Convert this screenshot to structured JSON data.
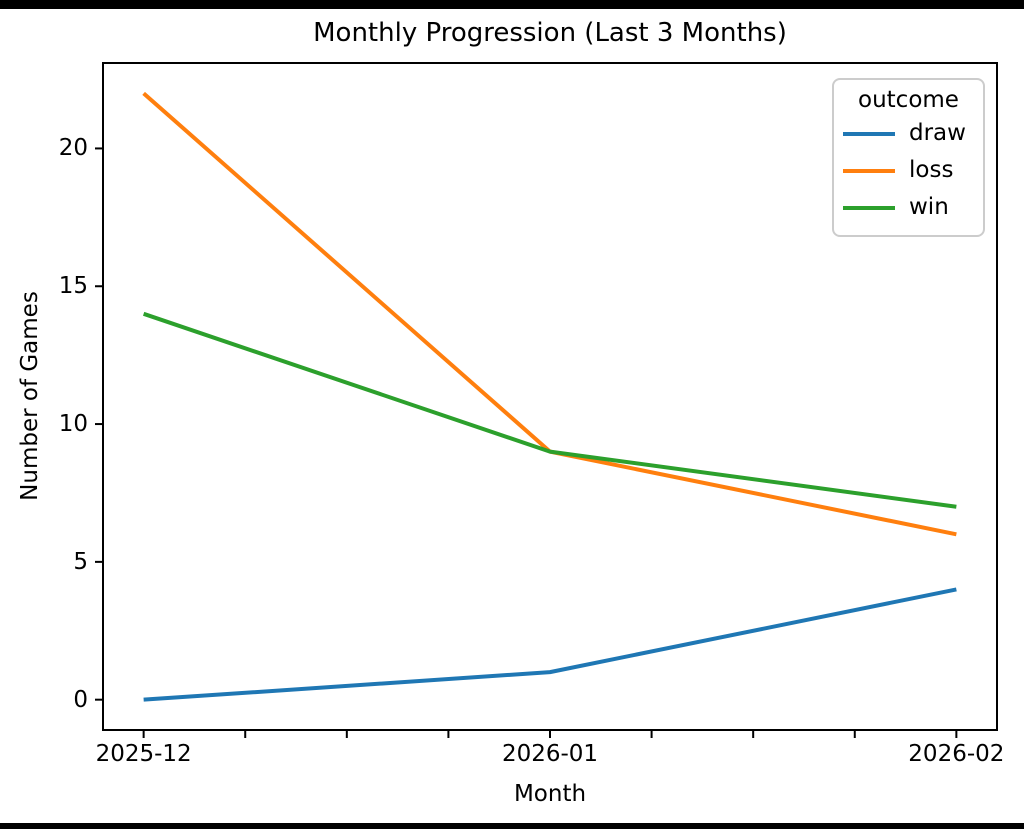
{
  "window": {
    "background_color": "#000000",
    "figure_background_color": "#ffffff"
  },
  "chart_data": {
    "type": "line",
    "title": "Monthly Progression (Last 3 Months)",
    "xlabel": "Month",
    "ylabel": "Number of Games",
    "categories": [
      "2025-12",
      "2026-01",
      "2026-02"
    ],
    "x": [
      0,
      1,
      2
    ],
    "series": [
      {
        "name": "draw",
        "values": [
          0,
          1,
          4
        ],
        "color": "#1f77b4"
      },
      {
        "name": "loss",
        "values": [
          22,
          9,
          6
        ],
        "color": "#ff7f0e"
      },
      {
        "name": "win",
        "values": [
          14,
          9,
          7
        ],
        "color": "#2ca02c"
      }
    ],
    "legend": {
      "title": "outcome",
      "position": "upper right"
    },
    "xlim": [
      -0.1,
      2.1
    ],
    "ylim": [
      -1.1,
      23.1
    ],
    "yticks": [
      0,
      5,
      10,
      15,
      20
    ],
    "xticks_major": [
      0,
      1,
      2
    ],
    "xtick_minor_step": 0.25,
    "grid": false,
    "axis_color": "#000000",
    "legend_border_color": "#cccccc"
  }
}
